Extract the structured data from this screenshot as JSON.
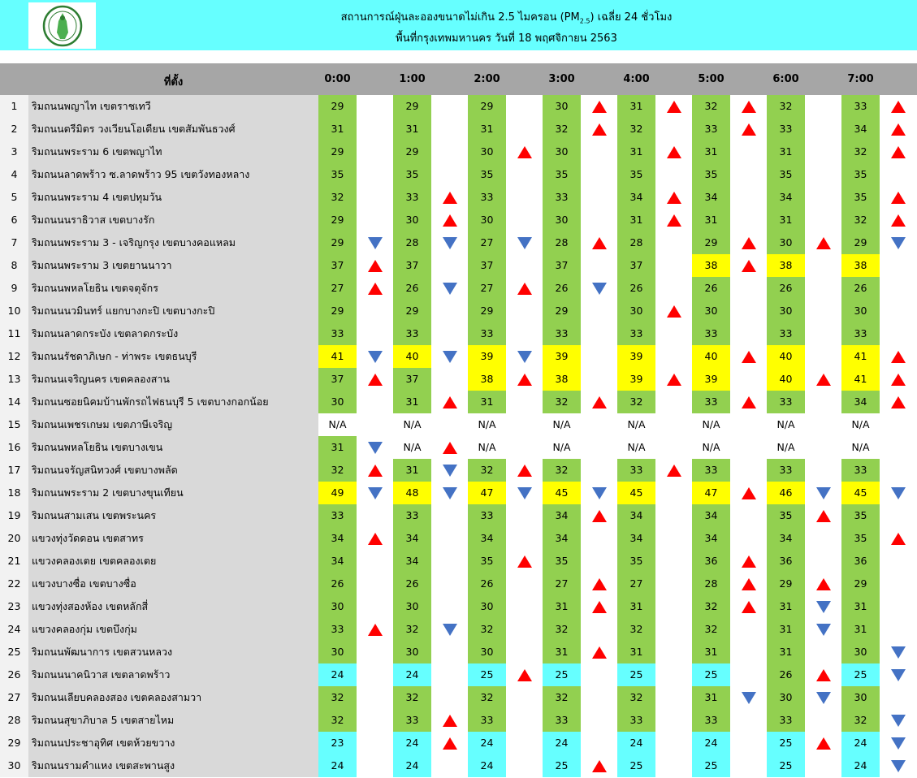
{
  "header": {
    "title_main": "สถานการณ์ฝุ่นละอองขนาดไม่เกิน 2.5 ไมครอน (PM",
    "title_sub": "2.5",
    "title_end": ") เฉลี่ย 24 ชั่วโมง",
    "subtitle": "พื้นที่กรุงเทพมหานคร วันที่ 18 พฤศจิกายน 2563",
    "logo": "bangkok-metropolitan-seal"
  },
  "colors": {
    "banner": "#66ffff",
    "good": "#66ffff",
    "moderate": "#92d050",
    "high": "#ffff00",
    "up": "#ff0000",
    "down": "#4472c4",
    "header": "#a6a6a6"
  },
  "table": {
    "location_header": "ที่ตั้ง",
    "times": [
      "0:00",
      "1:00",
      "2:00",
      "3:00",
      "4:00",
      "5:00",
      "6:00",
      "7:00"
    ],
    "rows": [
      {
        "no": "1",
        "name": "ริมถนนพญาไท เขตราชเทวี",
        "values": [
          "29",
          "29",
          "29",
          "30",
          "31",
          "32",
          "32",
          "33"
        ],
        "trends": [
          "",
          "",
          "",
          "up",
          "up",
          "up",
          "",
          "up"
        ]
      },
      {
        "no": "2",
        "name": "ริมถนนตรีมิตร วงเวียนโอเดียน เขตสัมพันธวงศ์",
        "values": [
          "31",
          "31",
          "31",
          "32",
          "32",
          "33",
          "33",
          "34"
        ],
        "trends": [
          "",
          "",
          "",
          "up",
          "",
          "up",
          "",
          "up"
        ]
      },
      {
        "no": "3",
        "name": "ริมถนนพระราม 6 เขตพญาไท",
        "values": [
          "29",
          "29",
          "30",
          "30",
          "31",
          "31",
          "31",
          "32"
        ],
        "trends": [
          "",
          "",
          "up",
          "",
          "up",
          "",
          "",
          "up"
        ]
      },
      {
        "no": "4",
        "name": "ริมถนนลาดพร้าว ซ.ลาดพร้าว 95 เขตวังทองหลาง",
        "values": [
          "35",
          "35",
          "35",
          "35",
          "35",
          "35",
          "35",
          "35"
        ],
        "trends": [
          "",
          "",
          "",
          "",
          "",
          "",
          "",
          ""
        ]
      },
      {
        "no": "5",
        "name": "ริมถนนพระราม 4 เขตปทุมวัน",
        "values": [
          "32",
          "33",
          "33",
          "33",
          "34",
          "34",
          "34",
          "35"
        ],
        "trends": [
          "",
          "up",
          "",
          "",
          "up",
          "",
          "",
          "up"
        ]
      },
      {
        "no": "6",
        "name": "ริมถนนนราธิวาส เขตบางรัก",
        "values": [
          "29",
          "30",
          "30",
          "30",
          "31",
          "31",
          "31",
          "32"
        ],
        "trends": [
          "",
          "up",
          "",
          "",
          "up",
          "",
          "",
          "up"
        ]
      },
      {
        "no": "7",
        "name": "ริมถนนพระราม 3 - เจริญกรุง เขตบางคอแหลม",
        "values": [
          "29",
          "28",
          "27",
          "28",
          "28",
          "29",
          "30",
          "29"
        ],
        "trends": [
          "down",
          "down",
          "down",
          "up",
          "",
          "up",
          "up",
          "down"
        ]
      },
      {
        "no": "8",
        "name": "ริมถนนพระราม 3 เขตยานนาวา",
        "values": [
          "37",
          "37",
          "37",
          "37",
          "37",
          "38",
          "38",
          "38"
        ],
        "trends": [
          "up",
          "",
          "",
          "",
          "",
          "up",
          "",
          ""
        ]
      },
      {
        "no": "9",
        "name": "ริมถนนพหลโยธิน เขตจตุจักร",
        "values": [
          "27",
          "26",
          "27",
          "26",
          "26",
          "26",
          "26",
          "26"
        ],
        "trends": [
          "up",
          "down",
          "up",
          "down",
          "",
          "",
          "",
          ""
        ]
      },
      {
        "no": "10",
        "name": "ริมถนนนวมินทร์ แยกบางกะปิ เขตบางกะปิ",
        "values": [
          "29",
          "29",
          "29",
          "29",
          "30",
          "30",
          "30",
          "30"
        ],
        "trends": [
          "",
          "",
          "",
          "",
          "up",
          "",
          "",
          ""
        ]
      },
      {
        "no": "11",
        "name": "ริมถนนลาดกระบัง เขตลาดกระบัง",
        "values": [
          "33",
          "33",
          "33",
          "33",
          "33",
          "33",
          "33",
          "33"
        ],
        "trends": [
          "",
          "",
          "",
          "",
          "",
          "",
          "",
          ""
        ]
      },
      {
        "no": "12",
        "name": "ริมถนนรัชดาภิเษก - ท่าพระ เขตธนบุรี",
        "values": [
          "41",
          "40",
          "39",
          "39",
          "39",
          "40",
          "40",
          "41"
        ],
        "trends": [
          "down",
          "down",
          "down",
          "",
          "",
          "up",
          "",
          "up"
        ]
      },
      {
        "no": "13",
        "name": "ริมถนนเจริญนคร เขตคลองสาน",
        "values": [
          "37",
          "37",
          "38",
          "38",
          "39",
          "39",
          "40",
          "41"
        ],
        "trends": [
          "up",
          "",
          "up",
          "",
          "up",
          "",
          "up",
          "up"
        ]
      },
      {
        "no": "14",
        "name": "ริมถนนซอยนิคมบ้านพักรถไฟธนบุรี 5 เขตบางกอกน้อย",
        "values": [
          "30",
          "31",
          "31",
          "32",
          "32",
          "33",
          "33",
          "34"
        ],
        "trends": [
          "",
          "up",
          "",
          "up",
          "",
          "up",
          "",
          "up"
        ]
      },
      {
        "no": "15",
        "name": "ริมถนนเพชรเกษม เขตภาษีเจริญ",
        "values": [
          "N/A",
          "N/A",
          "N/A",
          "N/A",
          "N/A",
          "N/A",
          "N/A",
          "N/A"
        ],
        "trends": [
          "",
          "",
          "",
          "",
          "",
          "",
          "",
          ""
        ]
      },
      {
        "no": "16",
        "name": "ริมถนนพหลโยธิน เขตบางเขน",
        "values": [
          "31",
          "N/A",
          "N/A",
          "N/A",
          "N/A",
          "N/A",
          "N/A",
          "N/A"
        ],
        "trends": [
          "down",
          "up",
          "",
          "",
          "",
          "",
          "",
          ""
        ]
      },
      {
        "no": "17",
        "name": "ริมถนนจรัญสนิทวงศ์ เขตบางพลัด",
        "values": [
          "32",
          "31",
          "32",
          "32",
          "33",
          "33",
          "33",
          "33"
        ],
        "trends": [
          "up",
          "down",
          "up",
          "",
          "up",
          "",
          "",
          ""
        ]
      },
      {
        "no": "18",
        "name": "ริมถนนพระราม 2 เขตบางขุนเทียน",
        "values": [
          "49",
          "48",
          "47",
          "45",
          "45",
          "47",
          "46",
          "45"
        ],
        "trends": [
          "down",
          "down",
          "down",
          "down",
          "",
          "up",
          "down",
          "down"
        ]
      },
      {
        "no": "19",
        "name": "ริมถนนสามเสน เขตพระนคร",
        "values": [
          "33",
          "33",
          "33",
          "34",
          "34",
          "34",
          "35",
          "35"
        ],
        "trends": [
          "",
          "",
          "",
          "up",
          "",
          "",
          "up",
          ""
        ]
      },
      {
        "no": "20",
        "name": "แขวงทุ่งวัดดอน เขตสาทร",
        "values": [
          "34",
          "34",
          "34",
          "34",
          "34",
          "34",
          "34",
          "35"
        ],
        "trends": [
          "up",
          "",
          "",
          "",
          "",
          "",
          "",
          "up"
        ]
      },
      {
        "no": "21",
        "name": "แขวงคลองเตย เขตคลองเตย",
        "values": [
          "34",
          "34",
          "35",
          "35",
          "35",
          "36",
          "36",
          "36"
        ],
        "trends": [
          "",
          "",
          "up",
          "",
          "",
          "up",
          "",
          ""
        ]
      },
      {
        "no": "22",
        "name": "แขวงบางซื่อ เขตบางซื่อ",
        "values": [
          "26",
          "26",
          "26",
          "27",
          "27",
          "28",
          "29",
          "29"
        ],
        "trends": [
          "",
          "",
          "",
          "up",
          "",
          "up",
          "up",
          ""
        ]
      },
      {
        "no": "23",
        "name": "แขวงทุ่งสองห้อง เขตหลักสี่",
        "values": [
          "30",
          "30",
          "30",
          "31",
          "31",
          "32",
          "31",
          "31"
        ],
        "trends": [
          "",
          "",
          "",
          "up",
          "",
          "up",
          "down",
          ""
        ]
      },
      {
        "no": "24",
        "name": "แขวงคลองกุ่ม เขตบึงกุ่ม",
        "values": [
          "33",
          "32",
          "32",
          "32",
          "32",
          "32",
          "31",
          "31"
        ],
        "trends": [
          "up",
          "down",
          "",
          "",
          "",
          "",
          "down",
          ""
        ]
      },
      {
        "no": "25",
        "name": "ริมถนนพัฒนาการ เขตสวนหลวง",
        "values": [
          "30",
          "30",
          "30",
          "31",
          "31",
          "31",
          "31",
          "30"
        ],
        "trends": [
          "",
          "",
          "",
          "up",
          "",
          "",
          "",
          "down"
        ]
      },
      {
        "no": "26",
        "name": "ริมถนนนาคนิวาส เขตลาดพร้าว",
        "values": [
          "24",
          "24",
          "25",
          "25",
          "25",
          "25",
          "26",
          "25"
        ],
        "trends": [
          "",
          "",
          "up",
          "",
          "",
          "",
          "up",
          "down"
        ]
      },
      {
        "no": "27",
        "name": "ริมถนนเลียบคลองสอง เขตคลองสามวา",
        "values": [
          "32",
          "32",
          "32",
          "32",
          "32",
          "31",
          "30",
          "30"
        ],
        "trends": [
          "",
          "",
          "",
          "",
          "",
          "down",
          "down",
          ""
        ]
      },
      {
        "no": "28",
        "name": "ริมถนนสุขาภิบาล 5 เขตสายไหม",
        "values": [
          "32",
          "33",
          "33",
          "33",
          "33",
          "33",
          "33",
          "32"
        ],
        "trends": [
          "",
          "up",
          "",
          "",
          "",
          "",
          "",
          "down"
        ]
      },
      {
        "no": "29",
        "name": "ริมถนนประชาอุทิศ เขตห้วยขวาง",
        "values": [
          "23",
          "24",
          "24",
          "24",
          "24",
          "24",
          "25",
          "24"
        ],
        "trends": [
          "",
          "up",
          "",
          "",
          "",
          "",
          "up",
          "down"
        ]
      },
      {
        "no": "30",
        "name": "ริมถนนรามคำแหง เขตสะพานสูง",
        "values": [
          "24",
          "24",
          "24",
          "25",
          "25",
          "25",
          "25",
          "24"
        ],
        "trends": [
          "",
          "",
          "",
          "up",
          "",
          "",
          "",
          "down"
        ]
      }
    ]
  }
}
